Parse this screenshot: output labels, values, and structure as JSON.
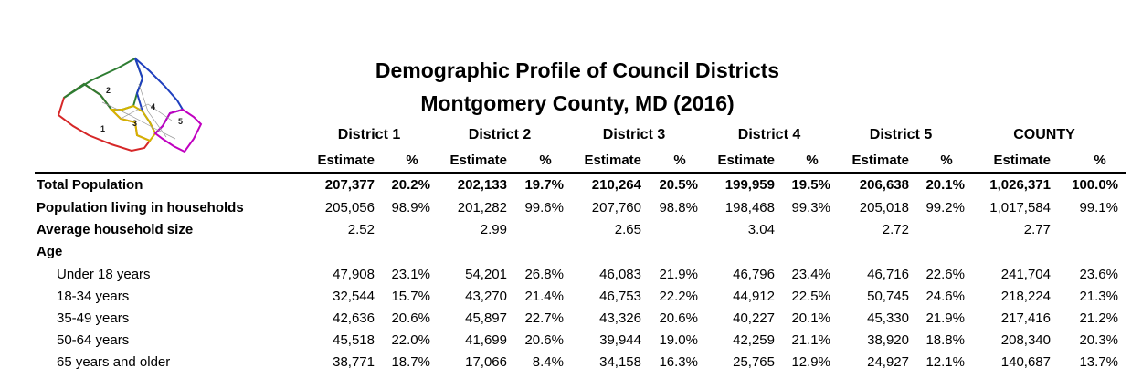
{
  "header": {
    "title": "Demographic Profile of Council Districts",
    "subtitle": "Montgomery County, MD (2016)"
  },
  "map": {
    "district_labels": [
      "1",
      "2",
      "3",
      "4",
      "5"
    ],
    "colors": {
      "d1": "#d62728",
      "d2": "#2e7d32",
      "d3": "#d4b400",
      "d4": "#1f3fbf",
      "d5": "#c000c0"
    }
  },
  "table": {
    "districts": [
      "District 1",
      "District 2",
      "District 3",
      "District 4",
      "District 5",
      "COUNTY"
    ],
    "col_estimate": "Estimate",
    "col_percent": "%",
    "rows": [
      {
        "label": "Total Population",
        "bold": true,
        "indent": false,
        "cells": [
          [
            "207,377",
            "20.2%"
          ],
          [
            "202,133",
            "19.7%"
          ],
          [
            "210,264",
            "20.5%"
          ],
          [
            "199,959",
            "19.5%"
          ],
          [
            "206,638",
            "20.1%"
          ],
          [
            "1,026,371",
            "100.0%"
          ]
        ]
      },
      {
        "label": "Population living in households",
        "bold": false,
        "labelBold": true,
        "indent": false,
        "cells": [
          [
            "205,056",
            "98.9%"
          ],
          [
            "201,282",
            "99.6%"
          ],
          [
            "207,760",
            "98.8%"
          ],
          [
            "198,468",
            "99.3%"
          ],
          [
            "205,018",
            "99.2%"
          ],
          [
            "1,017,584",
            "99.1%"
          ]
        ]
      },
      {
        "label": "Average household size",
        "bold": false,
        "labelBold": true,
        "indent": false,
        "cells": [
          [
            "2.52",
            ""
          ],
          [
            "2.99",
            ""
          ],
          [
            "2.65",
            ""
          ],
          [
            "3.04",
            ""
          ],
          [
            "2.72",
            ""
          ],
          [
            "2.77",
            ""
          ]
        ]
      },
      {
        "label": "Age",
        "bold": false,
        "labelBold": true,
        "indent": false,
        "cells": []
      },
      {
        "label": "Under 18 years",
        "bold": false,
        "indent": true,
        "cells": [
          [
            "47,908",
            "23.1%"
          ],
          [
            "54,201",
            "26.8%"
          ],
          [
            "46,083",
            "21.9%"
          ],
          [
            "46,796",
            "23.4%"
          ],
          [
            "46,716",
            "22.6%"
          ],
          [
            "241,704",
            "23.6%"
          ]
        ]
      },
      {
        "label": "18-34 years",
        "bold": false,
        "indent": true,
        "cells": [
          [
            "32,544",
            "15.7%"
          ],
          [
            "43,270",
            "21.4%"
          ],
          [
            "46,753",
            "22.2%"
          ],
          [
            "44,912",
            "22.5%"
          ],
          [
            "50,745",
            "24.6%"
          ],
          [
            "218,224",
            "21.3%"
          ]
        ]
      },
      {
        "label": "35-49 years",
        "bold": false,
        "indent": true,
        "cells": [
          [
            "42,636",
            "20.6%"
          ],
          [
            "45,897",
            "22.7%"
          ],
          [
            "43,326",
            "20.6%"
          ],
          [
            "40,227",
            "20.1%"
          ],
          [
            "45,330",
            "21.9%"
          ],
          [
            "217,416",
            "21.2%"
          ]
        ]
      },
      {
        "label": "50-64 years",
        "bold": false,
        "indent": true,
        "cells": [
          [
            "45,518",
            "22.0%"
          ],
          [
            "41,699",
            "20.6%"
          ],
          [
            "39,944",
            "19.0%"
          ],
          [
            "42,259",
            "21.1%"
          ],
          [
            "38,920",
            "18.8%"
          ],
          [
            "208,340",
            "20.3%"
          ]
        ]
      },
      {
        "label": "65 years and older",
        "bold": false,
        "indent": true,
        "cells": [
          [
            "38,771",
            "18.7%"
          ],
          [
            "17,066",
            "8.4%"
          ],
          [
            "34,158",
            "16.3%"
          ],
          [
            "25,765",
            "12.9%"
          ],
          [
            "24,927",
            "12.1%"
          ],
          [
            "140,687",
            "13.7%"
          ]
        ]
      }
    ]
  }
}
